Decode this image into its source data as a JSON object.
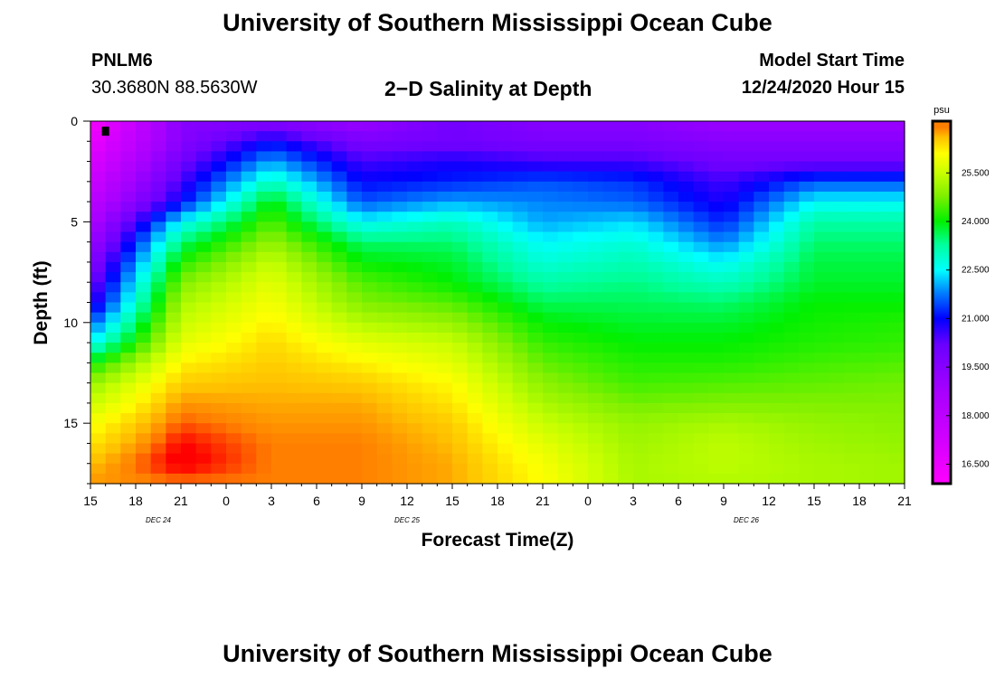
{
  "header": {
    "title": "University of Southern Mississippi Ocean Cube",
    "station_id": "PNLM6",
    "station_coords": "30.3680N 88.5630W",
    "plot_title": "2−D Salinity at Depth",
    "model_start_label": "Model Start Time",
    "model_start_value": "12/24/2020 Hour 15"
  },
  "footer": {
    "title": "University of Southern Mississippi Ocean Cube"
  },
  "colors": {
    "background": "#ffffff",
    "axis": "#000000",
    "missing_marker": "#000000"
  },
  "chart_data": {
    "type": "heatmap",
    "title": "2−D Salinity at Depth",
    "xlabel": "Forecast Time(Z)",
    "ylabel": "Depth (ft)",
    "x_range_hours": [
      0,
      54
    ],
    "y_range_ft": [
      0,
      18
    ],
    "x_tick_hours": [
      0,
      3,
      6,
      9,
      12,
      15,
      18,
      21,
      24,
      27,
      30,
      33,
      36,
      39,
      42,
      45,
      48,
      51,
      54
    ],
    "x_tick_labels": [
      "15",
      "18",
      "21",
      "0",
      "3",
      "6",
      "9",
      "12",
      "15",
      "18",
      "21",
      "0",
      "3",
      "6",
      "9",
      "12",
      "15",
      "18",
      "21"
    ],
    "date_labels": [
      {
        "text": "DEC 24",
        "hour": 4.5
      },
      {
        "text": "DEC 25",
        "hour": 21
      },
      {
        "text": "DEC 26",
        "hour": 43.5
      }
    ],
    "y_tick_values": [
      0,
      5,
      10,
      15
    ],
    "y_tick_labels": [
      "0",
      "5",
      "10",
      "15"
    ],
    "y_minor_step": 1,
    "colorbar": {
      "unit": "psu",
      "min": 15.9,
      "max": 27.1,
      "tick_values": [
        16.5,
        18.0,
        19.5,
        21.0,
        22.5,
        24.0,
        25.5
      ],
      "tick_labels": [
        "16.500",
        "18.000",
        "19.500",
        "21.000",
        "22.500",
        "24.000",
        "25.500"
      ],
      "stops": [
        {
          "v": 15.9,
          "c": "#ff00ff"
        },
        {
          "v": 17.2,
          "c": "#d400ff"
        },
        {
          "v": 18.7,
          "c": "#a900ff"
        },
        {
          "v": 20.2,
          "c": "#6a00ff"
        },
        {
          "v": 21.0,
          "c": "#0000ff"
        },
        {
          "v": 21.8,
          "c": "#0080ff"
        },
        {
          "v": 22.5,
          "c": "#00ffff"
        },
        {
          "v": 23.3,
          "c": "#00ff99"
        },
        {
          "v": 24.0,
          "c": "#00f000"
        },
        {
          "v": 24.8,
          "c": "#80f000"
        },
        {
          "v": 25.5,
          "c": "#c8ff00"
        },
        {
          "v": 26.1,
          "c": "#ffff00"
        },
        {
          "v": 26.6,
          "c": "#ffc000"
        },
        {
          "v": 26.9,
          "c": "#ff8000"
        },
        {
          "v": 27.2,
          "c": "#ff0000"
        }
      ]
    },
    "grid": {
      "time_hours": [
        0,
        6,
        12,
        18,
        24,
        30,
        36,
        42,
        48,
        54
      ],
      "depth_ft": [
        0,
        1,
        2,
        3,
        4,
        5,
        6,
        7,
        8,
        9,
        10,
        11,
        12,
        13,
        14,
        15,
        16,
        17,
        18
      ],
      "salinity_psu": [
        [
          16.0,
          19.5,
          19.5,
          19.0,
          20.0,
          19.5,
          19.5,
          19.0,
          19.0,
          19.0
        ],
        [
          16.5,
          19.5,
          21.0,
          19.8,
          20.0,
          19.8,
          19.8,
          19.5,
          19.5,
          19.5
        ],
        [
          17.0,
          20.0,
          22.0,
          20.5,
          20.8,
          20.5,
          20.5,
          20.0,
          20.0,
          20.0
        ],
        [
          17.5,
          20.5,
          23.0,
          21.0,
          21.2,
          21.5,
          21.3,
          20.5,
          21.5,
          21.5
        ],
        [
          18.0,
          21.0,
          24.0,
          21.5,
          22.0,
          21.8,
          21.6,
          20.8,
          22.5,
          22.5
        ],
        [
          18.5,
          22.5,
          24.5,
          22.5,
          23.0,
          22.0,
          22.3,
          21.2,
          23.2,
          23.2
        ],
        [
          19.0,
          23.5,
          25.0,
          23.5,
          23.5,
          22.5,
          22.8,
          21.8,
          23.5,
          23.5
        ],
        [
          19.5,
          24.2,
          25.5,
          24.0,
          23.8,
          22.8,
          23.1,
          22.5,
          23.7,
          23.7
        ],
        [
          20.0,
          24.8,
          25.8,
          24.5,
          24.0,
          23.2,
          23.4,
          23.0,
          23.8,
          23.8
        ],
        [
          20.5,
          25.2,
          26.0,
          24.8,
          24.5,
          23.6,
          23.6,
          23.5,
          24.0,
          24.0
        ],
        [
          21.5,
          25.5,
          26.2,
          25.3,
          25.0,
          24.0,
          23.8,
          23.8,
          24.1,
          24.2
        ],
        [
          22.5,
          25.8,
          26.4,
          25.8,
          25.5,
          24.3,
          24.0,
          24.0,
          24.2,
          24.3
        ],
        [
          24.0,
          26.2,
          26.5,
          26.2,
          25.8,
          24.6,
          24.2,
          24.2,
          24.4,
          24.5
        ],
        [
          25.0,
          26.5,
          26.6,
          26.5,
          26.1,
          24.9,
          24.4,
          24.5,
          24.6,
          24.7
        ],
        [
          25.5,
          26.8,
          26.7,
          26.7,
          26.3,
          25.2,
          24.7,
          24.8,
          24.8,
          24.8
        ],
        [
          26.0,
          27.0,
          26.8,
          26.8,
          26.5,
          25.5,
          25.0,
          25.2,
          25.0,
          24.9
        ],
        [
          26.3,
          27.2,
          26.9,
          26.9,
          26.6,
          25.8,
          25.1,
          25.4,
          25.1,
          25.0
        ],
        [
          26.6,
          27.3,
          26.9,
          26.9,
          26.7,
          26.0,
          25.2,
          25.4,
          25.2,
          25.1
        ],
        [
          26.8,
          26.9,
          26.9,
          26.9,
          26.7,
          26.1,
          25.2,
          25.3,
          25.2,
          25.1
        ]
      ]
    },
    "missing_cells": [
      {
        "hour": 1,
        "depth_ft": 0.5
      }
    ]
  }
}
